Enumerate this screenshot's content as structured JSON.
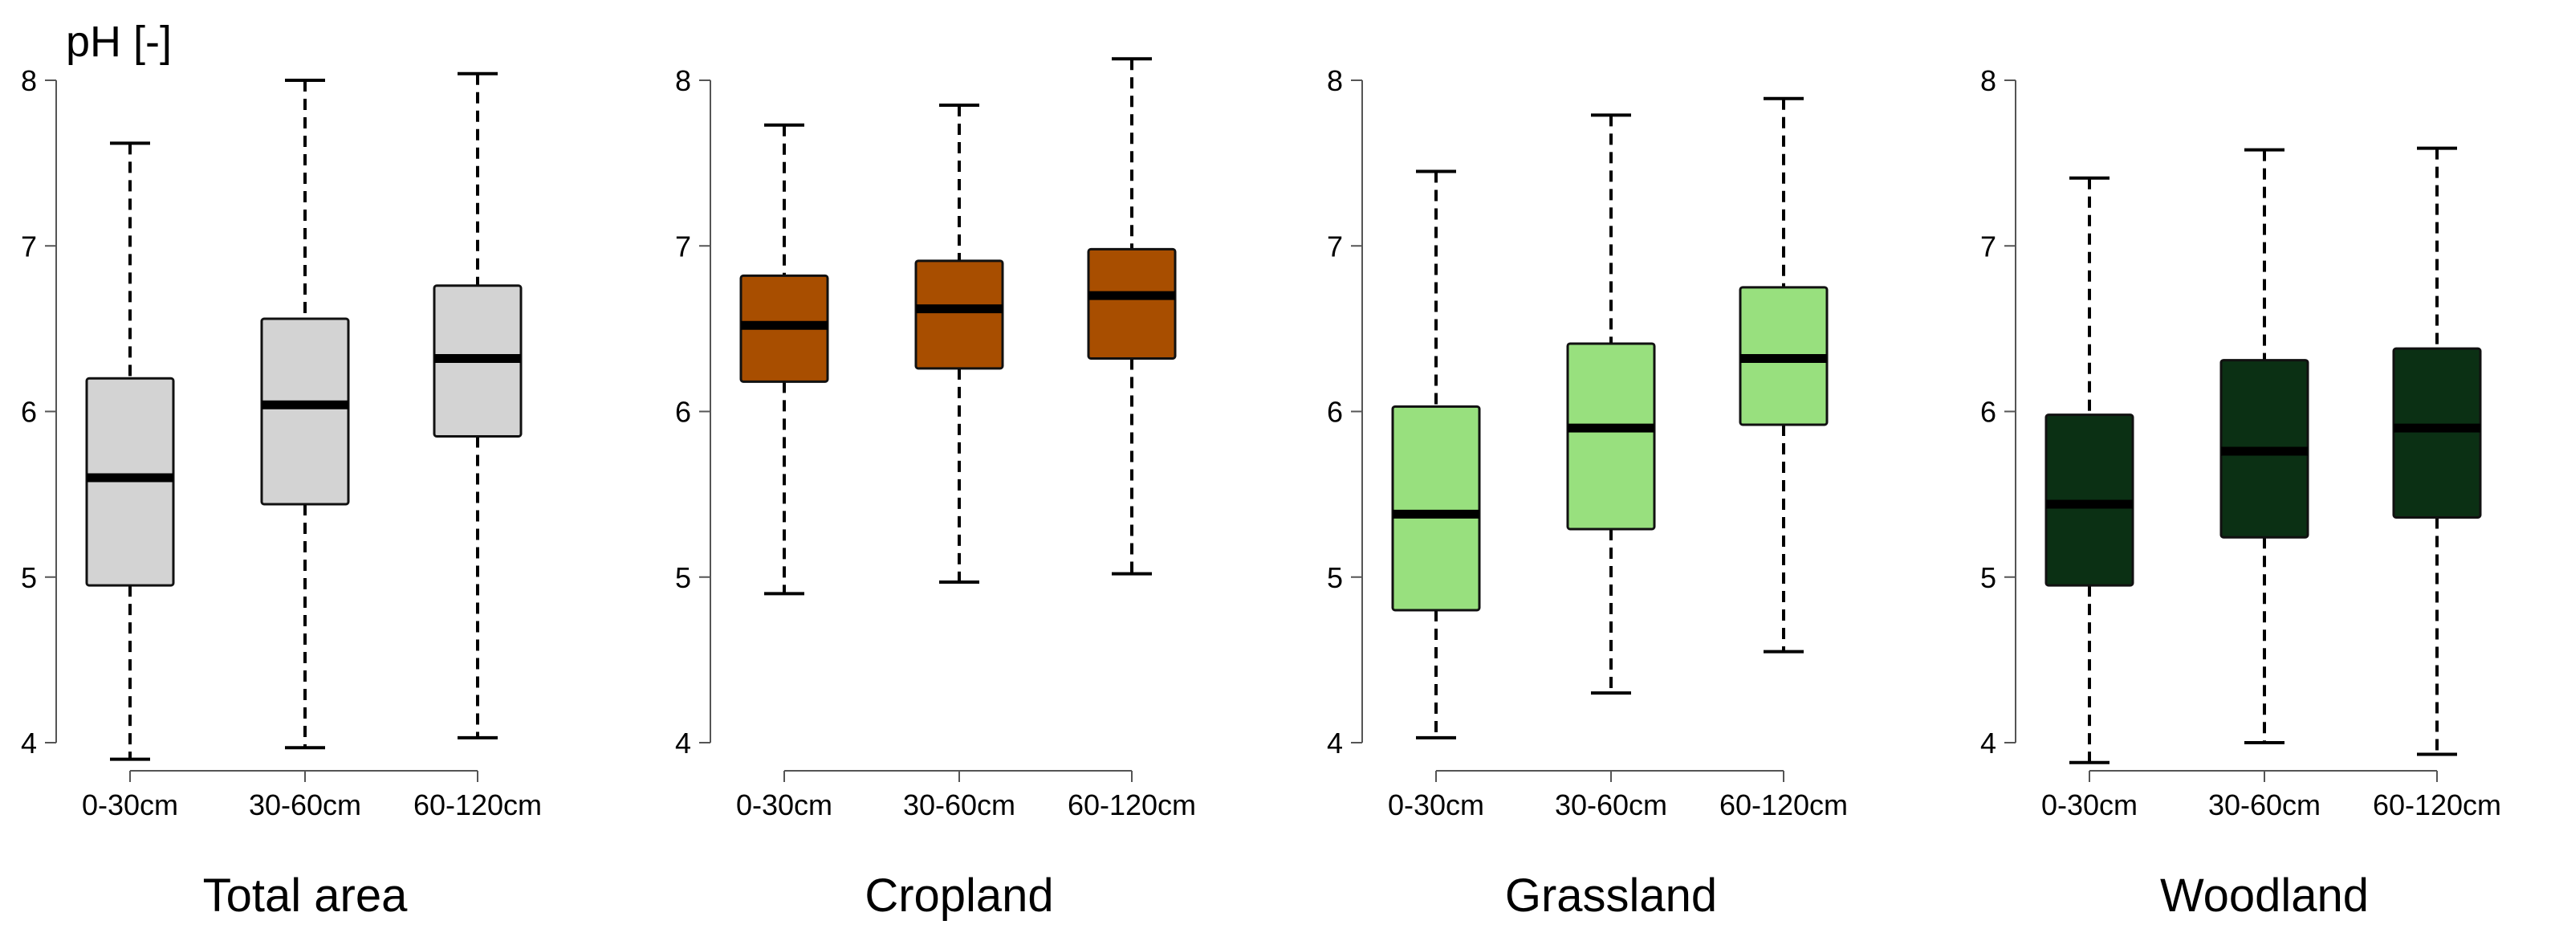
{
  "ylabel": "pH [-]",
  "chart_data": [
    {
      "type": "boxplot",
      "title": "Total area",
      "fill": "#d3d3d3",
      "ylim": [
        4,
        8
      ],
      "yticks": [
        "4",
        "5",
        "6",
        "7",
        "8"
      ],
      "categories": [
        "0-30cm",
        "30-60cm",
        "60-120cm"
      ],
      "boxes": [
        {
          "min": 3.9,
          "q1": 4.95,
          "median": 5.6,
          "q3": 6.2,
          "max": 7.62
        },
        {
          "min": 3.97,
          "q1": 5.44,
          "median": 6.04,
          "q3": 6.56,
          "max": 8.0
        },
        {
          "min": 4.03,
          "q1": 5.85,
          "median": 6.32,
          "q3": 6.76,
          "max": 8.04
        }
      ]
    },
    {
      "type": "boxplot",
      "title": "Cropland",
      "fill": "#a84e00",
      "ylim": [
        4,
        8
      ],
      "yticks": [
        "4",
        "5",
        "6",
        "7",
        "8"
      ],
      "categories": [
        "0-30cm",
        "30-60cm",
        "60-120cm"
      ],
      "boxes": [
        {
          "min": 4.9,
          "q1": 6.18,
          "median": 6.52,
          "q3": 6.82,
          "max": 7.73
        },
        {
          "min": 4.97,
          "q1": 6.26,
          "median": 6.62,
          "q3": 6.91,
          "max": 7.85
        },
        {
          "min": 5.02,
          "q1": 6.32,
          "median": 6.7,
          "q3": 6.98,
          "max": 8.13
        }
      ]
    },
    {
      "type": "boxplot",
      "title": "Grassland",
      "fill": "#98e07e",
      "ylim": [
        4,
        8
      ],
      "yticks": [
        "4",
        "5",
        "6",
        "7",
        "8"
      ],
      "categories": [
        "0-30cm",
        "30-60cm",
        "60-120cm"
      ],
      "boxes": [
        {
          "min": 4.03,
          "q1": 4.8,
          "median": 5.38,
          "q3": 6.03,
          "max": 7.45
        },
        {
          "min": 4.3,
          "q1": 5.29,
          "median": 5.9,
          "q3": 6.41,
          "max": 7.79
        },
        {
          "min": 4.55,
          "q1": 5.92,
          "median": 6.32,
          "q3": 6.75,
          "max": 7.89
        }
      ]
    },
    {
      "type": "boxplot",
      "title": "Woodland",
      "fill": "#0b3014",
      "ylim": [
        4,
        8
      ],
      "yticks": [
        "4",
        "5",
        "6",
        "7",
        "8"
      ],
      "categories": [
        "0-30cm",
        "30-60cm",
        "60-120cm"
      ],
      "boxes": [
        {
          "min": 3.88,
          "q1": 4.95,
          "median": 5.44,
          "q3": 5.98,
          "max": 7.41
        },
        {
          "min": 4.0,
          "q1": 5.24,
          "median": 5.76,
          "q3": 6.31,
          "max": 7.58
        },
        {
          "min": 3.93,
          "q1": 5.36,
          "median": 5.9,
          "q3": 6.38,
          "max": 7.59
        }
      ]
    }
  ]
}
